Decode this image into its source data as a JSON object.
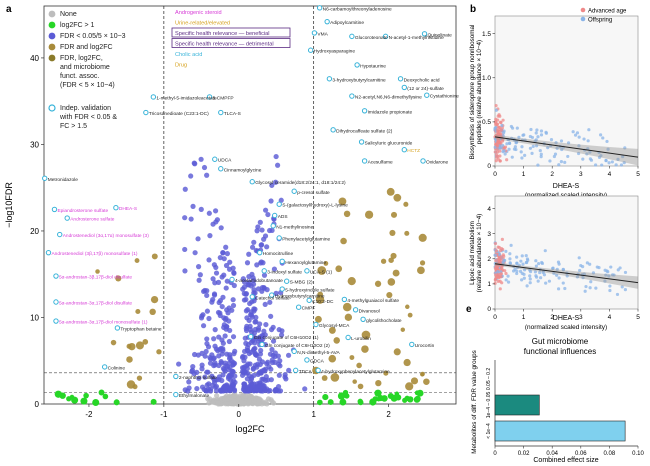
{
  "panel_letters": {
    "a": "a",
    "b": "b",
    "e": "e"
  },
  "colors": {
    "none": "#bdbdbd",
    "log2fc": "#27d627",
    "fdr": "#5b5bd6",
    "fdr_log2fc": "#a88b3a",
    "microbiome": "#8a7a2a",
    "validated_outline": "#37b3d9",
    "pink": "#d63bd6",
    "orange": "#d6a21f",
    "green_text": "#27a127",
    "purple_box": "#5a2a82",
    "red_age": "#ef8a8a",
    "blue_off": "#8ab4e8",
    "teal_bar": "#1b8a7f",
    "cyan_bar": "#7fd0ee"
  },
  "chart_data": [
    {
      "type": "scatter",
      "title": "",
      "xlabel": "log2FC",
      "ylabel": "−log10FDR",
      "xlim": [
        -2.6,
        2.9
      ],
      "ylim": [
        0,
        46
      ],
      "xticks": [
        "-2",
        "-1",
        "0",
        "1",
        "2"
      ],
      "yticks": [
        "0",
        "10",
        "20",
        "30",
        "40"
      ],
      "legend": [
        {
          "label": "None"
        },
        {
          "label": "log2FC > 1"
        },
        {
          "label": "FDR < 0.05/5 × 10−3"
        },
        {
          "label": "FDR and log2FC"
        },
        {
          "label": "FDR, log2FC,"
        },
        {
          "label": "and microbiome"
        },
        {
          "label": "funct. assoc."
        },
        {
          "label": "(FDR < 5 × 10−4)"
        },
        {
          "label": "Indep. validation"
        },
        {
          "label": "with FDR < 0.05 &"
        },
        {
          "label": "FC > 1.5"
        }
      ],
      "category_legend": [
        {
          "label": "Androgenic steroid",
          "color": "pink"
        },
        {
          "label": "Urine-related/elevated",
          "color": "orange"
        },
        {
          "label": "Specific health relevance — beneficial",
          "color": "purple_box"
        },
        {
          "label": "Specific health relevance — detrimental",
          "color": "purple_box"
        },
        {
          "label": "Cholic acid",
          "color": "validated_outline"
        },
        {
          "label": "Drug",
          "color": "orange"
        }
      ],
      "annotations": [
        {
          "text": "N6-carbamoylthreonyladenosine",
          "x": 1.12,
          "y": 45.5
        },
        {
          "text": "Adipoylcarnitine",
          "x": 1.22,
          "y": 43.9
        },
        {
          "text": "VMA",
          "x": 1.05,
          "y": 42.6
        },
        {
          "text": "Glucoroteonate",
          "x": 1.55,
          "y": 42.2
        },
        {
          "text": "N-acetyl-1-methylhistidine",
          "x": 2.0,
          "y": 42.2
        },
        {
          "text": "Quinolinate",
          "x": 2.52,
          "y": 42.5
        },
        {
          "text": "Hydroxyasparagine",
          "x": 1.0,
          "y": 40.6
        },
        {
          "text": "Hypotaurine",
          "x": 1.62,
          "y": 38.9
        },
        {
          "text": "3-hydroxybutyrylcarnitine",
          "x": 1.25,
          "y": 37.3
        },
        {
          "text": "Deoxycholic acid",
          "x": 2.2,
          "y": 37.3
        },
        {
          "text": "(12 or 24)-sulfate",
          "x": 2.25,
          "y": 36.3
        },
        {
          "text": "N2-acetyl,N6,N6-dimethyllysine",
          "x": 1.55,
          "y": 35.3
        },
        {
          "text": "Cystathionine",
          "x": 2.55,
          "y": 35.4
        },
        {
          "text": "Imidazole propionate",
          "x": 1.72,
          "y": 33.6
        },
        {
          "text": "1-methyl-5-imidazoleacetate",
          "x": -1.1,
          "y": 35.2
        },
        {
          "text": "3-CMPFP",
          "x": -0.35,
          "y": 35.2
        },
        {
          "text": "Tricosanedioate (C23:1-DC)",
          "x": -1.2,
          "y": 33.4
        },
        {
          "text": "TLCA-S",
          "x": -0.2,
          "y": 33.4
        },
        {
          "text": "Dihydrocaffeate sulfate (2)",
          "x": 1.3,
          "y": 31.4
        },
        {
          "text": "Salicyluric glucuronide",
          "x": 1.68,
          "y": 30.0
        },
        {
          "text": "HCTZ",
          "x": 2.25,
          "y": 29.1
        },
        {
          "text": "Acesulfame",
          "x": 1.72,
          "y": 27.8
        },
        {
          "text": "Oxidarone",
          "x": 2.5,
          "y": 27.8
        },
        {
          "text": "UDCA",
          "x": -0.28,
          "y": 28.0
        },
        {
          "text": "Cinnamoylglycine",
          "x": -0.2,
          "y": 26.9
        },
        {
          "text": "Glycosyl ceramide(d18:2/24:1, d18:1/24:2)",
          "x": 0.22,
          "y": 25.4
        },
        {
          "text": "Metronidazole",
          "x": -2.55,
          "y": 25.8
        },
        {
          "text": "p-cresol sulfate",
          "x": 0.78,
          "y": 24.3
        },
        {
          "text": "S-(galactosyl/hydroxy)-L-lysine",
          "x": 0.58,
          "y": 22.8
        },
        {
          "text": "ADS",
          "x": 0.52,
          "y": 21.5
        },
        {
          "text": "N1-methylinosine",
          "x": 0.5,
          "y": 20.3
        },
        {
          "text": "Phenylacetylglutamine",
          "x": 0.58,
          "y": 18.9
        },
        {
          "text": "Epiandrosterone sulfate",
          "x": -2.42,
          "y": 22.2
        },
        {
          "text": "DHEA-S",
          "x": -1.6,
          "y": 22.4
        },
        {
          "text": "Androsterone sulfate",
          "x": -2.25,
          "y": 21.2
        },
        {
          "text": "Androstenediol (3α,17α) monosulfate (3)",
          "x": -2.35,
          "y": 19.3
        },
        {
          "text": "Androstenediol (3β,17β) monosulfate (1)",
          "x": -2.5,
          "y": 17.2
        },
        {
          "text": "5α-androstan-3β,17β-diol disulfate",
          "x": -2.4,
          "y": 14.5
        },
        {
          "text": "5α-androstan-3α,17β-diol disulfate",
          "x": -2.4,
          "y": 11.5
        },
        {
          "text": "5α-androstan-3α,17β-diol monosulfate (1)",
          "x": -2.4,
          "y": 9.3
        },
        {
          "text": "Homocitrulline",
          "x": 0.32,
          "y": 17.2
        },
        {
          "text": "Hexanoylglutamine",
          "x": 0.62,
          "y": 16.2
        },
        {
          "text": "3-indoxyl sulfate",
          "x": 0.38,
          "y": 15.1
        },
        {
          "text": "UCA-S (1)",
          "x": 0.95,
          "y": 15.1
        },
        {
          "text": "4-acetamidobutanoate",
          "x": -0.05,
          "y": 14.1
        },
        {
          "text": "S-MBG (2)",
          "x": 0.68,
          "y": 13.9
        },
        {
          "text": "5-hydroxyindole sulfate",
          "x": 0.62,
          "y": 13.0
        },
        {
          "text": "Catechol sulfate",
          "x": 0.22,
          "y": 12.1
        },
        {
          "text": "Hydroxybutyrylcarnitine",
          "x": 0.48,
          "y": 12.3
        },
        {
          "text": "C10:2-DC",
          "x": 0.98,
          "y": 11.7
        },
        {
          "text": "4-methylguaiacol sulfate",
          "x": 1.45,
          "y": 11.8
        },
        {
          "text": "Tryptophan betaine",
          "x": -1.58,
          "y": 8.5
        },
        {
          "text": "CMPF",
          "x": 0.84,
          "y": 10.9
        },
        {
          "text": "Divanosol",
          "x": 1.6,
          "y": 10.6
        },
        {
          "text": "Glycosyl-MCA",
          "x": 1.07,
          "y": 8.9
        },
        {
          "text": "glycolithocholate",
          "x": 1.7,
          "y": 9.5
        },
        {
          "text": "Gln conjugate of C6H10O2 (1)",
          "x": 0.2,
          "y": 7.5
        },
        {
          "text": "Gln conjugate of C6H10O2 (2)",
          "x": 0.35,
          "y": 6.6
        },
        {
          "text": "N,N-dimethyl-5-AVA",
          "x": 0.78,
          "y": 5.8
        },
        {
          "text": "L-urobilin",
          "x": 1.5,
          "y": 7.4
        },
        {
          "text": "Urocortin",
          "x": 2.35,
          "y": 6.6
        },
        {
          "text": "GDCA",
          "x": 0.95,
          "y": 4.8
        },
        {
          "text": "Colinine",
          "x": -1.75,
          "y": 4.0
        },
        {
          "text": "2-naphthol sulfate",
          "x": -0.8,
          "y": 2.9
        },
        {
          "text": "TDCA",
          "x": 0.8,
          "y": 3.6
        },
        {
          "text": "4-hydroxyphenylacetylglutamine",
          "x": 1.1,
          "y": 3.6
        },
        {
          "text": "Ethylmalonate",
          "x": -0.8,
          "y": 0.8
        }
      ]
    },
    {
      "type": "scatter",
      "title": "",
      "xlabel": "DHEA-S",
      "xlabel2": "(normalized scaled intensity)",
      "ylabel": "Biosynthesis of siderophore group nonribosomal",
      "ylabel2": "peptides (relative abundance × 10−4)",
      "xlim": [
        0,
        5
      ],
      "ylim": [
        0,
        1.7
      ],
      "xticks": [
        "0",
        "1",
        "2",
        "3",
        "4",
        "5"
      ],
      "yticks": [
        "0",
        "0.5",
        "1.0",
        "1.5"
      ],
      "legend": [
        {
          "label": "Advanced age"
        },
        {
          "label": "Offspring"
        }
      ],
      "trend": {
        "x": [
          0,
          5
        ],
        "y": [
          0.33,
          0.1
        ]
      }
    },
    {
      "type": "scatter",
      "title": "",
      "xlabel": "DHEA-S",
      "xlabel2": "(normalized scaled intensity)",
      "ylabel": "Lipoic acid metabolism",
      "ylabel2": "(relative abundance × 10−4)",
      "xlim": [
        0,
        5
      ],
      "ylim": [
        0,
        4.5
      ],
      "xticks": [
        "0",
        "1",
        "2",
        "3",
        "4",
        "5"
      ],
      "yticks": [
        "0",
        "1",
        "2",
        "3",
        "4"
      ],
      "trend": {
        "x": [
          0,
          5
        ],
        "y": [
          1.8,
          1.05
        ]
      }
    },
    {
      "type": "bar",
      "orientation": "horizontal",
      "title": "Gut microbiome",
      "subtitle": "functional influences",
      "xlabel": "Combined effect size",
      "ylabel": "Metabolites of diff. FDR value groups",
      "categories": [
        "< 1e−4",
        "1e−4 – 0.05",
        "0.05 – 0.2"
      ],
      "values": [
        0.091,
        0.031,
        0.0
      ],
      "xlim": [
        0,
        0.1
      ],
      "xticks": [
        "0",
        "0.02",
        "0.04",
        "0.06",
        "0.08",
        "0.10"
      ]
    }
  ]
}
